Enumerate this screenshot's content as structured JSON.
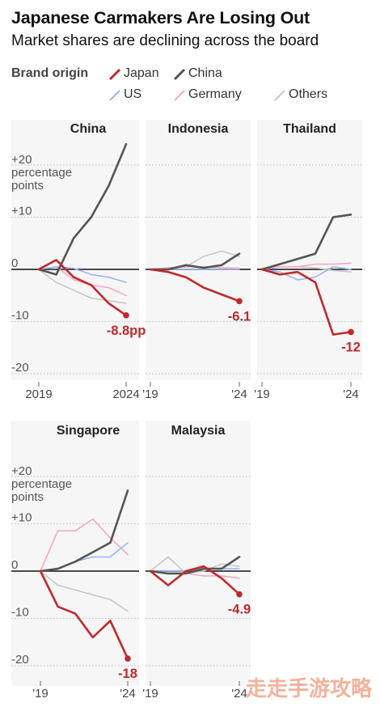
{
  "title": "Japanese Carmakers Are Losing Out",
  "subtitle": "Market shares are declining across the board",
  "legend": {
    "title": "Brand origin",
    "items": [
      {
        "key": "japan",
        "label": "Japan",
        "color": "#c0292b"
      },
      {
        "key": "china",
        "label": "China",
        "color": "#555555"
      },
      {
        "key": "us",
        "label": "US",
        "color": "#9bb6f2"
      },
      {
        "key": "germany",
        "label": "Germany",
        "color": "#f4a9c4"
      },
      {
        "key": "others",
        "label": "Others",
        "color": "#c8c8c8"
      }
    ]
  },
  "y_ticks": {
    "top_label_line1": "+20",
    "top_label_line2": "percentage",
    "top_label_line3": "points",
    "p10": "+10",
    "zero": "0",
    "m10": "-10",
    "m20": "-20"
  },
  "chart_data": {
    "type": "line",
    "ylabel": "percentage points",
    "ylim": [
      -20,
      22
    ],
    "x": [
      2019,
      2020,
      2021,
      2022,
      2023,
      2024
    ],
    "panels": [
      {
        "name": "China",
        "x_tick_labels": [
          "2019",
          "2024"
        ],
        "end_label": "-8.8pp",
        "series": {
          "japan": [
            0,
            1.8,
            -1.5,
            -3,
            -6.5,
            -8.8
          ],
          "china": [
            0,
            -1,
            6,
            10,
            16,
            24
          ],
          "us": [
            0,
            0.5,
            0.2,
            -1,
            -1.5,
            -2.5
          ],
          "germany": [
            0,
            0.5,
            -2,
            -3,
            -3.5,
            -5
          ],
          "others": [
            0,
            -2.5,
            -4,
            -5.5,
            -6,
            -6.5
          ]
        }
      },
      {
        "name": "Indonesia",
        "x_tick_labels": [
          "'19",
          "'24"
        ],
        "end_label": "-6.1",
        "series": {
          "japan": [
            0,
            -0.5,
            -1.5,
            -3.5,
            -4.8,
            -6.1
          ],
          "china": [
            0,
            0,
            0.8,
            0.3,
            0.8,
            3
          ],
          "us": [
            0,
            0,
            0,
            0,
            0,
            0
          ],
          "germany": [
            0,
            0.3,
            0.5,
            0.5,
            0.3,
            0.2
          ],
          "others": [
            0,
            0.3,
            0.5,
            2.5,
            3.5,
            2.5
          ]
        }
      },
      {
        "name": "Thailand",
        "x_tick_labels": [
          "'19",
          "'24"
        ],
        "end_label": "-12",
        "series": {
          "japan": [
            0,
            -1,
            -0.5,
            -2.5,
            -12.5,
            -12
          ],
          "china": [
            0,
            1,
            2,
            3,
            10,
            10.5
          ],
          "us": [
            0,
            -0.5,
            -2,
            -1.5,
            0.5,
            0
          ],
          "germany": [
            0,
            0.5,
            0.5,
            1,
            1,
            1.2
          ],
          "others": [
            0,
            0.5,
            0.5,
            0.3,
            -0.2,
            -0.5
          ]
        }
      },
      {
        "name": "Singapore",
        "x_tick_labels": [
          "'19",
          "'24"
        ],
        "end_label": "-18",
        "series": {
          "japan": [
            0,
            -7.5,
            -9,
            -14,
            -10.5,
            -18.5
          ],
          "china": [
            0,
            0.5,
            2,
            4,
            6,
            17
          ],
          "us": [
            0,
            0.5,
            2,
            3,
            3,
            6
          ],
          "germany": [
            0,
            8.5,
            8.5,
            11,
            7,
            3.5
          ],
          "others": [
            0,
            -3,
            -4,
            -5,
            -6,
            -8.5
          ]
        }
      },
      {
        "name": "Malaysia",
        "x_tick_labels": [
          "'19",
          "'24"
        ],
        "end_label": "-4.9",
        "series": {
          "japan": [
            0,
            -3,
            0,
            1,
            -1.5,
            -4.9
          ],
          "china": [
            0,
            -0.5,
            -0.5,
            0.5,
            0.5,
            3
          ],
          "us": [
            0,
            0,
            0,
            0.5,
            0.5,
            0.5
          ],
          "germany": [
            0,
            -0.5,
            -0.5,
            -1,
            -1,
            -1.5
          ],
          "others": [
            0,
            3,
            -0.5,
            0,
            1.5,
            1
          ]
        }
      }
    ]
  },
  "watermark": "走走手游攻略"
}
